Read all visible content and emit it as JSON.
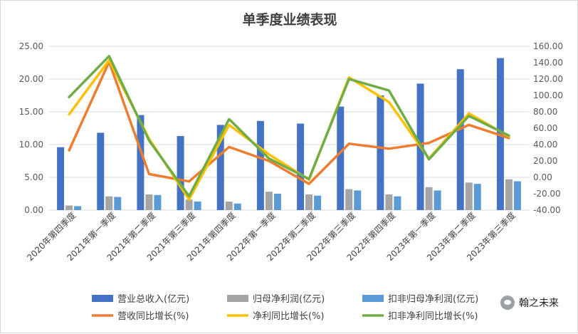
{
  "watermark": {
    "icon": "wechat-icon",
    "text": "翰之未来"
  },
  "colors": {
    "revenue_bar": "#4472C4",
    "net_profit_bar": "#A5A5A5",
    "deducted_profit_bar": "#5B9BD5",
    "revenue_growth_line": "#ED7D31",
    "profit_growth_line": "#FFC000",
    "deducted_growth_line": "#70AD47",
    "axis_text": "#595959",
    "grid": "#D9D9D9"
  },
  "chart_data": {
    "type": "bar",
    "title": "单季度业绩表现",
    "categories": [
      "2020年第四季度",
      "2021年第一季度",
      "2021年第二季度",
      "2021年第三季度",
      "2021年第四季度",
      "2022年第一季度",
      "2022年第二季度",
      "2022年第三季度",
      "2022年第四季度",
      "2023年第一季度",
      "2023年第二季度",
      "2023年第三季度"
    ],
    "y_left": {
      "lim": [
        0,
        25
      ],
      "ticks": [
        "0.00",
        "5.00",
        "10.00",
        "15.00",
        "20.00",
        "25.00"
      ]
    },
    "y_right": {
      "lim": [
        -40,
        160
      ],
      "ticks": [
        "-40.00",
        "-20.00",
        "0.00",
        "20.00",
        "40.00",
        "60.00",
        "80.00",
        "100.00",
        "120.00",
        "140.00",
        "160.00"
      ]
    },
    "grid": true,
    "legend_position": "bottom",
    "bar_series": [
      {
        "name": "营业总收入(亿元)",
        "color": "#4472C4",
        "values": [
          9.6,
          11.8,
          14.5,
          11.3,
          13.0,
          13.6,
          13.2,
          15.8,
          17.5,
          19.3,
          21.5,
          23.2
        ]
      },
      {
        "name": "归母净利润(亿元)",
        "color": "#A5A5A5",
        "values": [
          0.7,
          2.1,
          2.4,
          1.6,
          1.3,
          2.8,
          2.4,
          3.2,
          2.4,
          3.5,
          4.2,
          4.7
        ]
      },
      {
        "name": "扣非归母净利润(亿元)",
        "color": "#5B9BD5",
        "values": [
          0.6,
          2.0,
          2.3,
          1.3,
          1.0,
          2.5,
          2.2,
          3.0,
          2.1,
          3.0,
          4.0,
          4.4
        ]
      }
    ],
    "line_series": [
      {
        "name": "营收同比增长(%)",
        "color": "#ED7D31",
        "values": [
          33,
          141,
          4,
          -5,
          37,
          20,
          -8,
          41,
          35,
          42,
          64,
          48
        ]
      },
      {
        "name": "净利同比增长(%)",
        "color": "#FFC000",
        "values": [
          77,
          143,
          47,
          -27,
          64,
          28,
          -3,
          122,
          92,
          23,
          78,
          50
        ]
      },
      {
        "name": "扣非净利同比增长(%)",
        "color": "#70AD47",
        "values": [
          98,
          148,
          45,
          -23,
          71,
          23,
          -2,
          120,
          106,
          22,
          75,
          51
        ]
      }
    ]
  }
}
